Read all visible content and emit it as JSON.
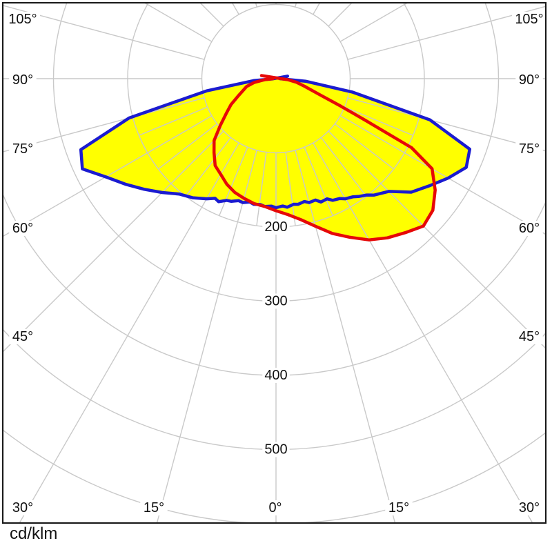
{
  "unit_label": "cd/klm",
  "chart_data": {
    "type": "polar_intensity_curve",
    "title": "",
    "unit": "cd/klm",
    "gamma_axis": {
      "tick_step_deg": 15,
      "half_tick_step_deg": 7.5,
      "labels_left": [
        "105°",
        "90°",
        "75°",
        "60°",
        "45°"
      ],
      "labels_bottom": [
        "30°",
        "15°",
        "0°",
        "15°",
        "30°"
      ],
      "labels_right": [
        "105°",
        "90°",
        "75°",
        "60°",
        "45°"
      ]
    },
    "radial_axis": {
      "labels": [
        "200",
        "300",
        "400",
        "500"
      ],
      "values": [
        200,
        300,
        400,
        500
      ],
      "circle_step": 100,
      "max_circle": 600
    },
    "colors": {
      "grid": "#c9c9c9",
      "frame": "#1a1a1a",
      "fill": "#ffff00",
      "blue": "#1b1bd0",
      "red": "#e60808",
      "text": "#111111"
    },
    "series": [
      {
        "name": "curve-blue",
        "color": "#1b1bd0",
        "points": [
          [
            -78,
            -16
          ],
          [
            -88,
            4
          ],
          [
            -85,
            30
          ],
          [
            -80,
            95
          ],
          [
            -75,
            205
          ],
          [
            -70,
            280
          ],
          [
            -65,
            288
          ],
          [
            -60,
            265
          ],
          [
            -55,
            248
          ],
          [
            -50,
            232
          ],
          [
            -45,
            217
          ],
          [
            -40,
            203
          ],
          [
            -35,
            196
          ],
          [
            -30,
            187
          ],
          [
            -27,
            181
          ],
          [
            -25,
            183
          ],
          [
            -22,
            177
          ],
          [
            -20,
            176
          ],
          [
            -17,
            172
          ],
          [
            -15,
            173
          ],
          [
            -12,
            170
          ],
          [
            -10,
            172
          ],
          [
            -7,
            171
          ],
          [
            -5,
            173
          ],
          [
            -2,
            172
          ],
          [
            0,
            174
          ],
          [
            3,
            172
          ],
          [
            5,
            174
          ],
          [
            8,
            171
          ],
          [
            10,
            172
          ],
          [
            13,
            170
          ],
          [
            15,
            173
          ],
          [
            18,
            172
          ],
          [
            20,
            177
          ],
          [
            23,
            176
          ],
          [
            25,
            181
          ],
          [
            28,
            183
          ],
          [
            30,
            187
          ],
          [
            33,
            190
          ],
          [
            35,
            194
          ],
          [
            38,
            199
          ],
          [
            40,
            205
          ],
          [
            45,
            215
          ],
          [
            50,
            238
          ],
          [
            55,
            252
          ],
          [
            60,
            268
          ],
          [
            65,
            283
          ],
          [
            70,
            278
          ],
          [
            75,
            215
          ],
          [
            80,
            105
          ],
          [
            85,
            40
          ],
          [
            90,
            5
          ]
        ]
      },
      {
        "name": "curve-red",
        "color": "#e60808",
        "points": [
          [
            -90,
            4
          ],
          [
            -85,
            15
          ],
          [
            -80,
            30
          ],
          [
            -75,
            41
          ],
          [
            -71,
            46
          ],
          [
            -65,
            57
          ],
          [
            -60,
            70
          ],
          [
            -55,
            82
          ],
          [
            -50,
            98
          ],
          [
            -45,
            118
          ],
          [
            -40,
            130
          ],
          [
            -35,
            143
          ],
          [
            -30,
            149
          ],
          [
            -25,
            157
          ],
          [
            -20,
            163
          ],
          [
            -15,
            167
          ],
          [
            -10,
            171
          ],
          [
            -5,
            173
          ],
          [
            0,
            178
          ],
          [
            5,
            184
          ],
          [
            10,
            193
          ],
          [
            15,
            206
          ],
          [
            20,
            222
          ],
          [
            25,
            236
          ],
          [
            30,
            251
          ],
          [
            35,
            262
          ],
          [
            40,
            271
          ],
          [
            45,
            281
          ],
          [
            50,
            276
          ],
          [
            55,
            262
          ],
          [
            60,
            243
          ],
          [
            63,
            205
          ],
          [
            65,
            133
          ],
          [
            67,
            95
          ],
          [
            70,
            62
          ],
          [
            75,
            40
          ],
          [
            80,
            28
          ],
          [
            85,
            16
          ],
          [
            78,
            -20
          ]
        ]
      }
    ]
  }
}
